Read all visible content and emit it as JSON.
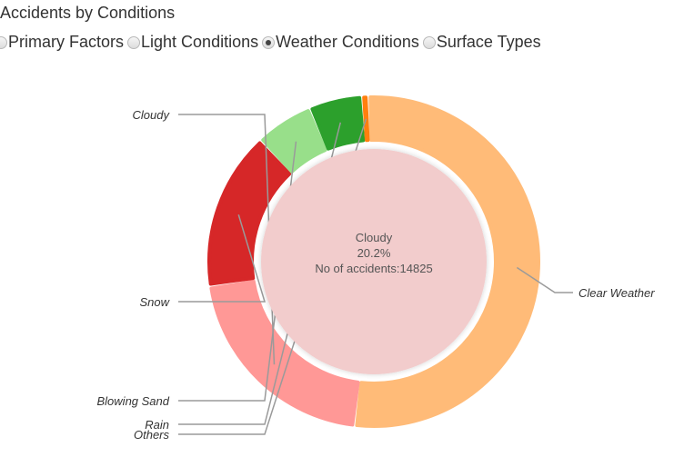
{
  "header": {
    "title": "Accidents by Conditions"
  },
  "filters": {
    "options": [
      {
        "label": "Primary Factors",
        "checked": false
      },
      {
        "label": "Light Conditions",
        "checked": false
      },
      {
        "label": "Weather Conditions",
        "checked": true
      },
      {
        "label": "Surface Types",
        "checked": false
      }
    ]
  },
  "chart_data": {
    "type": "pie",
    "series": [
      {
        "name": "Clear Weather",
        "value": 51.0,
        "color": "#ffbb78"
      },
      {
        "name": "Cloudy",
        "value": 20.2,
        "color": "#ff9896"
      },
      {
        "name": "Snow",
        "value": 15.0,
        "color": "#d62728"
      },
      {
        "name": "Blowing Sand",
        "value": 5.5,
        "color": "#98df8a"
      },
      {
        "name": "Rain",
        "value": 5.0,
        "color": "#2ca02c"
      },
      {
        "name": "Others",
        "value": 0.6,
        "color": "#ff7f0e"
      }
    ],
    "center": {
      "category": "Cloudy",
      "percent": "20.2%",
      "accidents": "No of accidents:14825",
      "fill": "#f2cccc"
    }
  }
}
